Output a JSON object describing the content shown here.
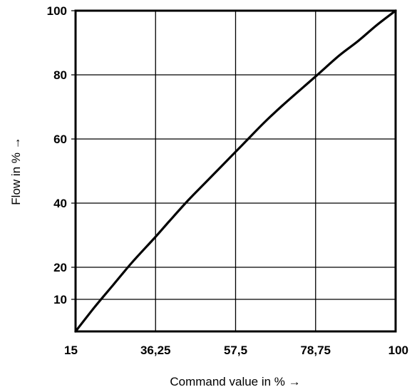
{
  "chart_data": {
    "type": "line",
    "xlabel": "Command value in % →",
    "ylabel": "Flow in % →",
    "xlim": [
      15,
      100
    ],
    "ylim": [
      0,
      100
    ],
    "x_ticks": [
      {
        "value": 15,
        "label": "15"
      },
      {
        "value": 36.25,
        "label": "36,25"
      },
      {
        "value": 57.5,
        "label": "57,5"
      },
      {
        "value": 78.75,
        "label": "78,75"
      },
      {
        "value": 100,
        "label": "100"
      }
    ],
    "y_ticks": [
      {
        "value": 10,
        "label": "10"
      },
      {
        "value": 20,
        "label": "20"
      },
      {
        "value": 40,
        "label": "40"
      },
      {
        "value": 60,
        "label": "60"
      },
      {
        "value": 80,
        "label": "80"
      },
      {
        "value": 100,
        "label": "100"
      }
    ],
    "grid": true,
    "series": [
      {
        "x": [
          15,
          20,
          25,
          30,
          36.25,
          40,
          45,
          50,
          57.5,
          60,
          65,
          70,
          78.75,
          85,
          90,
          95,
          100
        ],
        "y": [
          0,
          7.5,
          14.5,
          21.5,
          29.5,
          34.5,
          41,
          47,
          56,
          59,
          65,
          70.5,
          79.5,
          86,
          90.5,
          95.5,
          100
        ]
      }
    ]
  }
}
